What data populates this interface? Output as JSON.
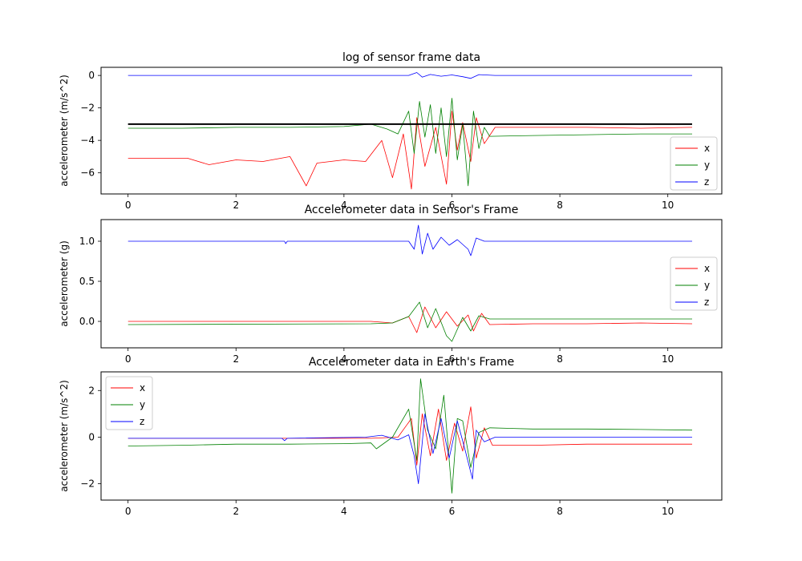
{
  "figure": {
    "background": "#ffffff"
  },
  "chart_data": [
    {
      "type": "line",
      "title": "log of sensor frame data",
      "xlabel": "",
      "ylabel": "accelerometer (m/s^2)",
      "xlim": [
        -0.5,
        11.0
      ],
      "ylim": [
        -7.3,
        0.5
      ],
      "xticks": [
        0,
        2,
        4,
        6,
        8,
        10
      ],
      "yticks": [
        0,
        -2,
        -4,
        -6
      ],
      "legend": "lower-right",
      "reference_line": {
        "y": -3.0,
        "x": [
          0,
          10.45
        ],
        "color": "#000000"
      },
      "series": [
        {
          "name": "x",
          "color": "#ff0000",
          "x": [
            0,
            1.1,
            1.5,
            2.0,
            2.5,
            3.0,
            3.3,
            3.5,
            4.0,
            4.4,
            4.7,
            4.9,
            5.1,
            5.25,
            5.35,
            5.5,
            5.7,
            5.9,
            6.0,
            6.1,
            6.2,
            6.35,
            6.45,
            6.6,
            6.8,
            7.5,
            8.5,
            9.5,
            10.45
          ],
          "y": [
            -5.1,
            -5.1,
            -5.5,
            -5.2,
            -5.3,
            -5.0,
            -6.8,
            -5.4,
            -5.2,
            -5.3,
            -4.0,
            -6.3,
            -3.6,
            -7.0,
            -2.6,
            -5.6,
            -3.2,
            -6.7,
            -2.2,
            -4.6,
            -2.9,
            -5.3,
            -2.6,
            -4.2,
            -3.2,
            -3.2,
            -3.2,
            -3.25,
            -3.2
          ]
        },
        {
          "name": "y",
          "color": "#008000",
          "x": [
            0,
            1.0,
            2.0,
            3.0,
            4.0,
            4.5,
            4.8,
            5.0,
            5.2,
            5.3,
            5.4,
            5.5,
            5.6,
            5.7,
            5.8,
            5.9,
            6.0,
            6.1,
            6.2,
            6.3,
            6.4,
            6.5,
            6.6,
            6.7,
            7.5,
            8.5,
            9.5,
            10.45
          ],
          "y": [
            -3.25,
            -3.25,
            -3.2,
            -3.2,
            -3.15,
            -3.0,
            -3.3,
            -3.6,
            -2.2,
            -4.8,
            -1.6,
            -3.8,
            -1.8,
            -4.8,
            -2.0,
            -5.0,
            -1.4,
            -5.2,
            -3.0,
            -6.8,
            -2.2,
            -4.5,
            -3.2,
            -3.75,
            -3.7,
            -3.65,
            -3.6,
            -3.6
          ]
        },
        {
          "name": "z",
          "color": "#0000ff",
          "x": [
            0,
            5.2,
            5.35,
            5.45,
            5.6,
            5.8,
            6.0,
            6.2,
            6.35,
            6.5,
            6.8,
            10.45
          ],
          "y": [
            0.0,
            0.0,
            0.18,
            -0.1,
            0.06,
            -0.05,
            0.03,
            -0.08,
            -0.18,
            0.05,
            0.0,
            0.0
          ]
        }
      ]
    },
    {
      "type": "line",
      "title": "Accelerometer data in Sensor's Frame",
      "xlabel": "",
      "ylabel": "accelerometer (g)",
      "xlim": [
        -0.5,
        11.0
      ],
      "ylim": [
        -0.33,
        1.27
      ],
      "xticks": [
        0,
        2,
        4,
        6,
        8,
        10
      ],
      "yticks": [
        1.0,
        0.5,
        0.0
      ],
      "legend": "center-right",
      "series": [
        {
          "name": "x",
          "color": "#ff0000",
          "x": [
            0,
            4.5,
            4.9,
            5.2,
            5.35,
            5.5,
            5.7,
            5.9,
            6.1,
            6.3,
            6.4,
            6.55,
            6.7,
            7.5,
            8.5,
            9.5,
            10.45
          ],
          "y": [
            0.0,
            0.0,
            -0.02,
            0.06,
            -0.14,
            0.18,
            -0.08,
            0.12,
            -0.06,
            0.08,
            -0.12,
            0.1,
            -0.04,
            -0.03,
            -0.03,
            -0.02,
            -0.03
          ]
        },
        {
          "name": "y",
          "color": "#008000",
          "x": [
            0,
            4.5,
            4.9,
            5.2,
            5.4,
            5.55,
            5.7,
            5.9,
            6.0,
            6.2,
            6.35,
            6.5,
            6.7,
            7.5,
            8.5,
            9.5,
            10.45
          ],
          "y": [
            -0.04,
            -0.03,
            -0.02,
            0.06,
            0.24,
            -0.08,
            0.16,
            -0.18,
            -0.25,
            0.05,
            -0.12,
            0.07,
            0.03,
            0.03,
            0.03,
            0.03,
            0.03
          ]
        },
        {
          "name": "z",
          "color": "#0000ff",
          "x": [
            0,
            2.9,
            2.92,
            2.95,
            5.2,
            5.3,
            5.38,
            5.45,
            5.55,
            5.65,
            5.8,
            5.95,
            6.1,
            6.3,
            6.35,
            6.45,
            6.6,
            10.45
          ],
          "y": [
            1.0,
            1.0,
            0.97,
            1.0,
            1.0,
            0.9,
            1.2,
            0.84,
            1.1,
            0.9,
            1.05,
            0.95,
            1.02,
            0.9,
            0.82,
            1.04,
            1.0,
            1.0
          ]
        }
      ]
    },
    {
      "type": "line",
      "title": "Accelerometer data in Earth's Frame",
      "xlabel": "",
      "ylabel": "accelerometer (m/s^2)",
      "xlim": [
        -0.5,
        11.0
      ],
      "ylim": [
        -2.7,
        2.8
      ],
      "xticks": [
        0,
        2,
        4,
        6,
        8,
        10
      ],
      "yticks": [
        2,
        0,
        -2
      ],
      "legend": "upper-left",
      "series": [
        {
          "name": "x",
          "color": "#ff0000",
          "x": [
            0,
            4.5,
            5.0,
            5.25,
            5.35,
            5.45,
            5.6,
            5.75,
            5.9,
            6.05,
            6.2,
            6.35,
            6.45,
            6.6,
            6.75,
            7.5,
            8.5,
            9.5,
            10.45
          ],
          "y": [
            -0.05,
            -0.05,
            0.0,
            0.8,
            -1.2,
            1.0,
            -0.8,
            1.2,
            -1.0,
            0.6,
            -0.6,
            1.3,
            -0.9,
            0.4,
            -0.35,
            -0.35,
            -0.3,
            -0.3,
            -0.3
          ]
        },
        {
          "name": "y",
          "color": "#008000",
          "x": [
            0,
            1.0,
            2.0,
            3.0,
            4.0,
            4.5,
            4.6,
            4.9,
            5.2,
            5.35,
            5.42,
            5.55,
            5.7,
            5.85,
            6.0,
            6.1,
            6.2,
            6.35,
            6.5,
            6.7,
            7.5,
            8.5,
            9.5,
            10.45
          ],
          "y": [
            -0.38,
            -0.35,
            -0.3,
            -0.3,
            -0.28,
            -0.25,
            -0.5,
            0.0,
            1.2,
            -1.0,
            2.5,
            0.3,
            -0.5,
            1.8,
            -2.4,
            0.8,
            0.7,
            -1.3,
            0.2,
            0.4,
            0.35,
            0.35,
            0.33,
            0.3
          ]
        },
        {
          "name": "z",
          "color": "#0000ff",
          "x": [
            0,
            2.85,
            2.9,
            2.95,
            4.4,
            4.7,
            5.0,
            5.2,
            5.3,
            5.38,
            5.5,
            5.65,
            5.8,
            5.95,
            6.1,
            6.25,
            6.38,
            6.45,
            6.6,
            6.8,
            10.45
          ],
          "y": [
            -0.05,
            -0.05,
            -0.15,
            -0.05,
            0.0,
            0.08,
            -0.12,
            0.1,
            -0.8,
            -2.0,
            1.0,
            -0.7,
            0.8,
            -0.9,
            0.7,
            -0.6,
            -1.8,
            0.3,
            -0.2,
            0.0,
            0.0
          ]
        }
      ]
    }
  ]
}
